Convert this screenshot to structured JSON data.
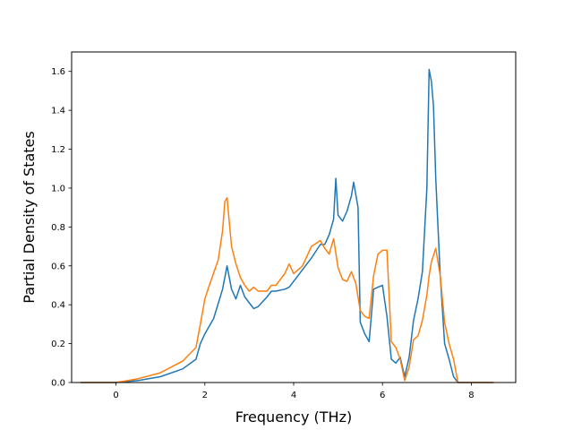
{
  "chart_data": {
    "type": "line",
    "xlabel": "Frequency (THz)",
    "ylabel": "Partial Density of States",
    "xlim": [
      -1.0,
      9.0
    ],
    "ylim": [
      0.0,
      1.7
    ],
    "xticks": [
      0,
      2,
      4,
      6,
      8
    ],
    "yticks": [
      0.0,
      0.2,
      0.4,
      0.6,
      0.8,
      1.0,
      1.2,
      1.4,
      1.6
    ],
    "xtick_labels": [
      "0",
      "2",
      "4",
      "6",
      "8"
    ],
    "ytick_labels": [
      "0.0",
      "0.2",
      "0.4",
      "0.6",
      "0.8",
      "1.0",
      "1.2",
      "1.4",
      "1.6"
    ],
    "grid": false,
    "series": [
      {
        "color": "#1f77b4",
        "x": [
          -0.8,
          0.0,
          0.5,
          1.0,
          1.5,
          1.8,
          1.9,
          2.0,
          2.2,
          2.4,
          2.5,
          2.6,
          2.7,
          2.8,
          2.9,
          3.0,
          3.1,
          3.2,
          3.4,
          3.5,
          3.6,
          3.8,
          3.9,
          4.0,
          4.2,
          4.4,
          4.6,
          4.7,
          4.8,
          4.9,
          4.95,
          5.0,
          5.1,
          5.2,
          5.3,
          5.35,
          5.45,
          5.5,
          5.6,
          5.7,
          5.8,
          5.9,
          6.0,
          6.1,
          6.2,
          6.3,
          6.4,
          6.5,
          6.6,
          6.7,
          6.8,
          6.9,
          7.0,
          7.05,
          7.1,
          7.15,
          7.2,
          7.3,
          7.4,
          7.5,
          7.6,
          7.7,
          8.0,
          8.5
        ],
        "y": [
          0.0,
          0.0,
          0.01,
          0.03,
          0.07,
          0.12,
          0.2,
          0.25,
          0.33,
          0.48,
          0.6,
          0.48,
          0.43,
          0.5,
          0.44,
          0.41,
          0.38,
          0.39,
          0.44,
          0.47,
          0.47,
          0.48,
          0.49,
          0.52,
          0.58,
          0.64,
          0.71,
          0.71,
          0.76,
          0.84,
          1.05,
          0.86,
          0.83,
          0.88,
          0.96,
          1.03,
          0.9,
          0.31,
          0.25,
          0.21,
          0.48,
          0.49,
          0.5,
          0.34,
          0.12,
          0.1,
          0.13,
          0.03,
          0.13,
          0.32,
          0.43,
          0.57,
          1.0,
          1.61,
          1.55,
          1.42,
          1.05,
          0.55,
          0.2,
          0.12,
          0.03,
          0.0,
          0.0,
          0.0
        ]
      },
      {
        "color": "#ff7f0e",
        "x": [
          -0.8,
          0.0,
          0.5,
          1.0,
          1.5,
          1.8,
          1.9,
          2.0,
          2.1,
          2.3,
          2.4,
          2.45,
          2.5,
          2.6,
          2.7,
          2.8,
          2.9,
          3.0,
          3.1,
          3.2,
          3.4,
          3.5,
          3.6,
          3.8,
          3.9,
          4.0,
          4.2,
          4.4,
          4.6,
          4.7,
          4.8,
          4.9,
          5.0,
          5.1,
          5.2,
          5.3,
          5.4,
          5.5,
          5.6,
          5.7,
          5.8,
          5.9,
          6.0,
          6.1,
          6.2,
          6.3,
          6.4,
          6.5,
          6.6,
          6.7,
          6.8,
          6.9,
          7.0,
          7.05,
          7.1,
          7.2,
          7.3,
          7.4,
          7.5,
          7.6,
          7.7,
          8.0,
          8.5
        ],
        "y": [
          0.0,
          0.0,
          0.02,
          0.05,
          0.11,
          0.18,
          0.3,
          0.43,
          0.5,
          0.63,
          0.78,
          0.93,
          0.95,
          0.7,
          0.61,
          0.54,
          0.5,
          0.47,
          0.49,
          0.47,
          0.47,
          0.5,
          0.5,
          0.56,
          0.61,
          0.56,
          0.6,
          0.7,
          0.73,
          0.69,
          0.66,
          0.74,
          0.59,
          0.53,
          0.52,
          0.57,
          0.51,
          0.37,
          0.34,
          0.33,
          0.55,
          0.66,
          0.68,
          0.68,
          0.21,
          0.18,
          0.12,
          0.01,
          0.08,
          0.22,
          0.24,
          0.32,
          0.45,
          0.55,
          0.62,
          0.69,
          0.55,
          0.31,
          0.2,
          0.12,
          0.0,
          0.0,
          0.0
        ]
      }
    ]
  }
}
